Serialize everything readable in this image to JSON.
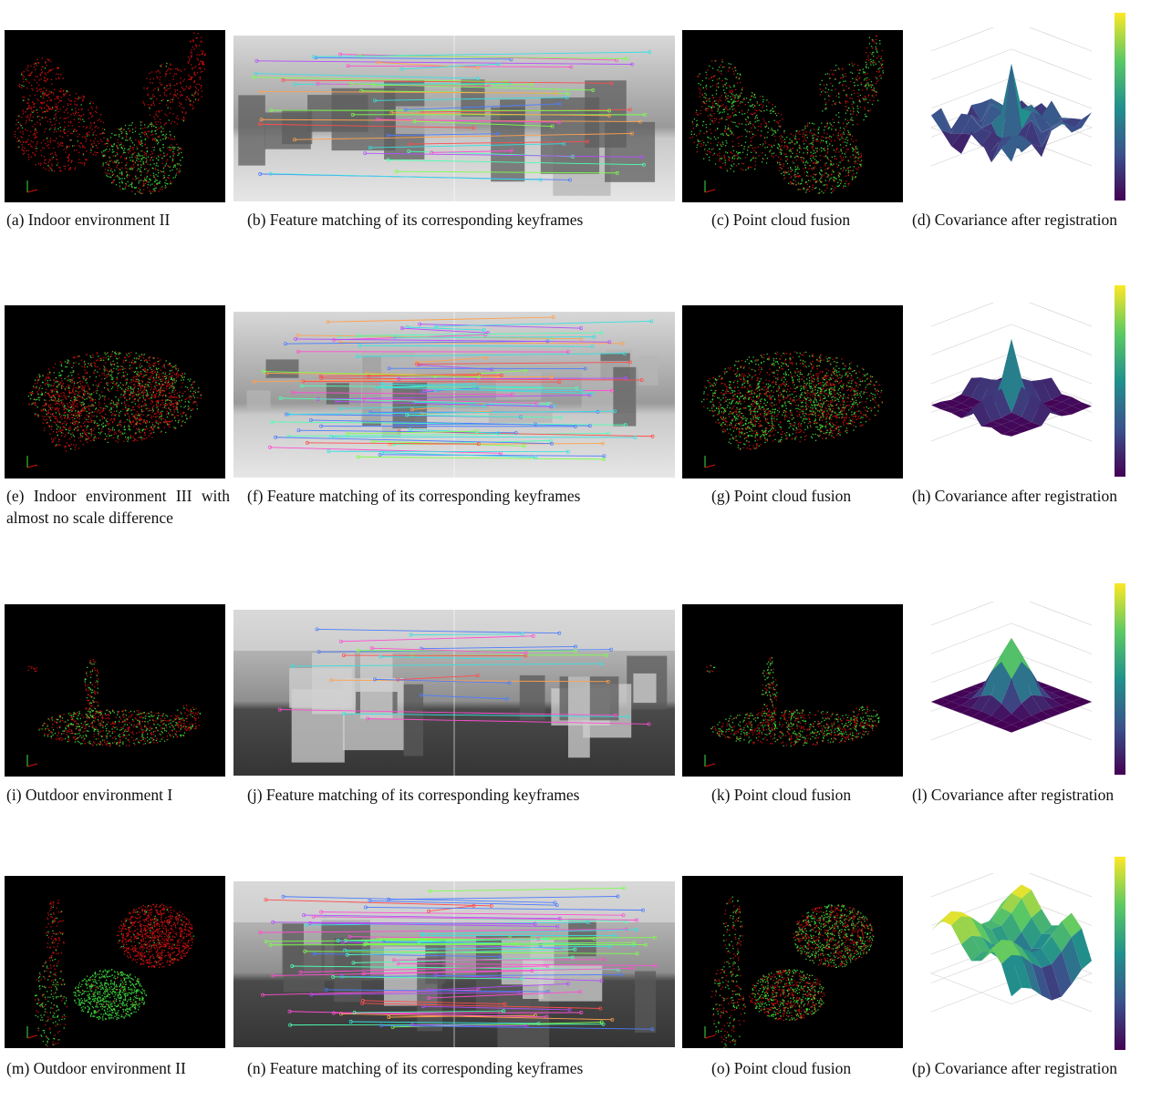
{
  "rows": [
    {
      "a": {
        "caption": "(a) Indoor environment II"
      },
      "b": {
        "caption": "(b) Feature matching of its corresponding keyframes"
      },
      "c": {
        "caption": "(c) Point cloud fusion"
      },
      "d": {
        "caption": "(d) Covariance after registration"
      }
    },
    {
      "a": {
        "caption": "(e) Indoor environment III with almost no scale difference"
      },
      "b": {
        "caption": "(f) Feature matching of its corresponding keyframes"
      },
      "c": {
        "caption": "(g) Point cloud fusion"
      },
      "d": {
        "caption": "(h) Covariance after registration"
      }
    },
    {
      "a": {
        "caption": "(i) Outdoor environment I"
      },
      "b": {
        "caption": "(j) Feature matching of its corresponding keyframes"
      },
      "c": {
        "caption": "(k) Point cloud fusion"
      },
      "d": {
        "caption": "(l) Covariance after registration"
      }
    },
    {
      "a": {
        "caption": "(m) Outdoor environment II"
      },
      "b": {
        "caption": "(n) Feature matching of its corresponding keyframes"
      },
      "c": {
        "caption": "(o) Point cloud fusion"
      },
      "d": {
        "caption": "(p) Covariance after registration"
      }
    }
  ],
  "colors": {
    "point_red": "#d41010",
    "point_green": "#3fe03f",
    "viridis_low": "#440154",
    "viridis_mid": "#21908c",
    "viridis_high": "#fde725"
  }
}
